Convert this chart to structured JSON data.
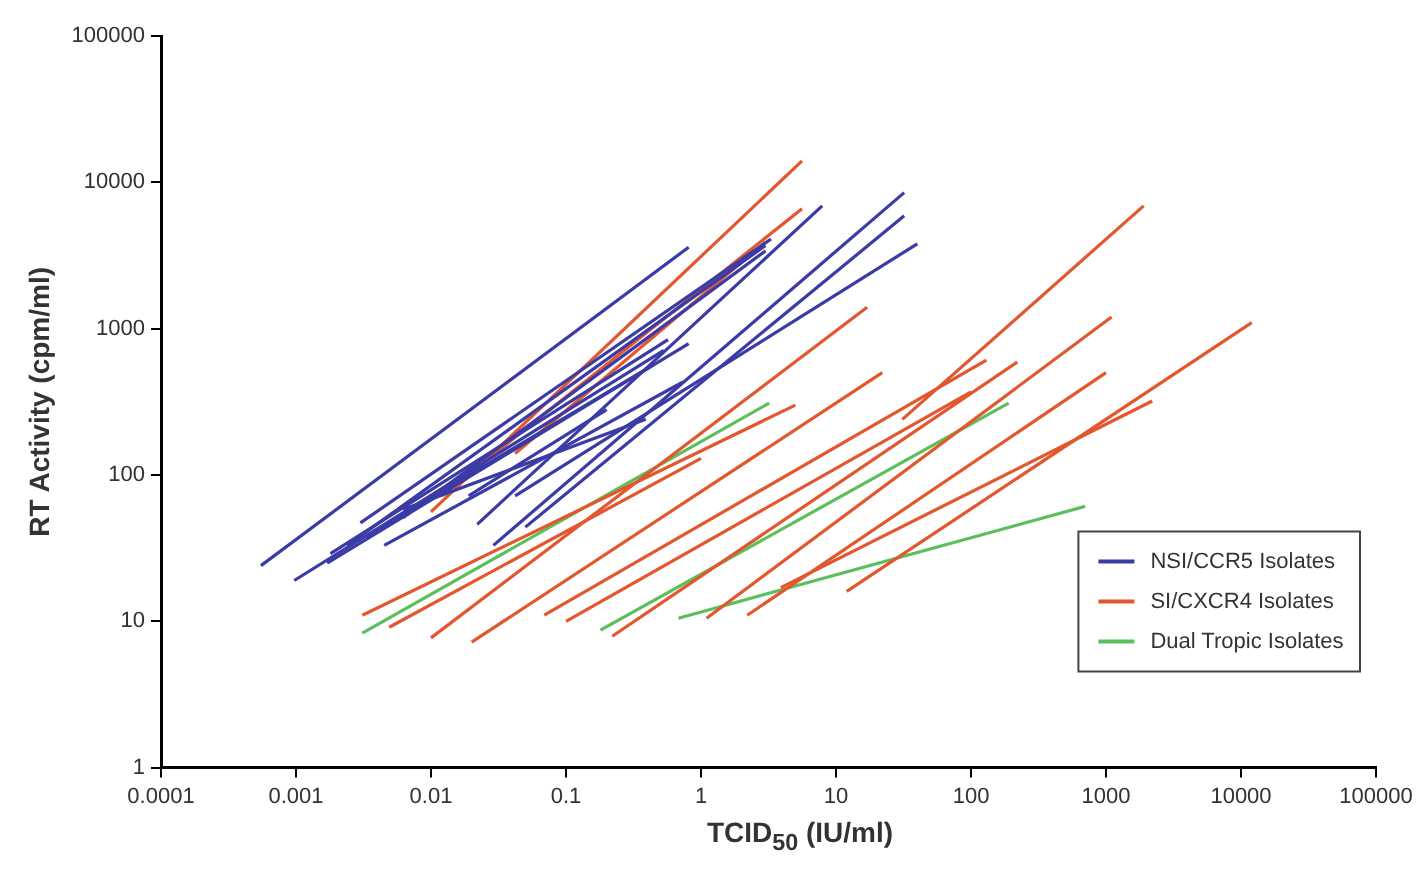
{
  "chart_data": {
    "type": "line",
    "xlabel": "TCID$_{50}$ (IU/ml)",
    "ylabel": "RT Activity (cpm/ml)",
    "log": "xy",
    "xlim": [
      0.0001,
      100000
    ],
    "ylim": [
      1,
      100000
    ],
    "xticks": [
      0.0001,
      0.001,
      0.01,
      0.1,
      1,
      10,
      100,
      1000,
      10000,
      100000
    ],
    "yticks": [
      1,
      10,
      100,
      1000,
      10000,
      100000
    ],
    "grid": false,
    "legend": "bottom right",
    "marker": "none",
    "line_style": "solid",
    "series": [
      {
        "name": "NSI/CCR5 Isolates",
        "color": "#3b3ba6",
        "x": [
          0.00055,
          0.81
        ],
        "values": [
          24,
          3600
        ]
      },
      {
        "color": "#3b3ba6",
        "x": [
          0.00097,
          0.53
        ],
        "values": [
          19,
          710
        ]
      },
      {
        "color": "#3b3ba6",
        "x": [
          0.0017,
          0.81
        ],
        "values": [
          25,
          790
        ]
      },
      {
        "color": "#3b3ba6",
        "x": [
          0.0018,
          0.57
        ],
        "values": [
          29,
          840
        ]
      },
      {
        "color": "#3b3ba6",
        "x": [
          0.0024,
          3
        ],
        "values": [
          33,
          3700
        ]
      },
      {
        "color": "#3b3ba6",
        "x": [
          0.003,
          3.3
        ],
        "values": [
          47,
          4100
        ]
      },
      {
        "color": "#3b3ba6",
        "x": [
          0.0033,
          0.45
        ],
        "values": [
          38,
          570
        ]
      },
      {
        "color": "#3b3ba6",
        "x": [
          0.0062,
          0.39
        ],
        "values": [
          58,
          240
        ]
      },
      {
        "color": "#3b3ba6",
        "x": [
          0.022,
          7.9
        ],
        "values": [
          46,
          6900
        ]
      },
      {
        "color": "#3b3ba6",
        "x": [
          0.029,
          32
        ],
        "values": [
          33,
          8500
        ]
      },
      {
        "color": "#3b3ba6",
        "x": [
          0.05,
          32
        ],
        "values": [
          44,
          5900
        ]
      },
      {
        "color": "#3b3ba6",
        "x": [
          0.042,
          40
        ],
        "values": [
          72,
          3800
        ]
      },
      {
        "color": "#3b3ba6",
        "x": [
          0.0062,
          3
        ],
        "values": [
          51,
          3400
        ]
      },
      {
        "color": "#3b3ba6",
        "x": [
          0.019,
          0.2
        ],
        "values": [
          72,
          280
        ]
      },
      {
        "color": "#3b3ba6",
        "x": [
          0.0045,
          0.73
        ],
        "values": [
          33,
          430
        ]
      },
      {
        "name": "SI/CXCR4 Isolates",
        "color": "#e2572e",
        "x": [
          0.01,
          5.6
        ],
        "values": [
          56,
          14000
        ]
      },
      {
        "color": "#e2572e",
        "x": [
          0.012,
          5.6
        ],
        "values": [
          72,
          6600
        ]
      },
      {
        "color": "#e2572e",
        "x": [
          0.042,
          3
        ],
        "values": [
          140,
          3900
        ]
      },
      {
        "color": "#e2572e",
        "x": [
          0.0031,
          5
        ],
        "values": [
          11,
          300
        ]
      },
      {
        "color": "#e2572e",
        "x": [
          0.0049,
          1
        ],
        "values": [
          9.1,
          130
        ]
      },
      {
        "color": "#e2572e",
        "x": [
          0.01,
          17
        ],
        "values": [
          7.7,
          1400
        ]
      },
      {
        "color": "#e2572e",
        "x": [
          0.02,
          22
        ],
        "values": [
          7.2,
          500
        ]
      },
      {
        "color": "#e2572e",
        "x": [
          0.069,
          130
        ],
        "values": [
          11,
          610
        ]
      },
      {
        "color": "#e2572e",
        "x": [
          0.1,
          100
        ],
        "values": [
          10,
          370
        ]
      },
      {
        "color": "#e2572e",
        "x": [
          0.22,
          220
        ],
        "values": [
          7.9,
          590
        ]
      },
      {
        "color": "#e2572e",
        "x": [
          1.1,
          1100
        ],
        "values": [
          10.5,
          1200
        ]
      },
      {
        "color": "#e2572e",
        "x": [
          2.2,
          1000
        ],
        "values": [
          11,
          500
        ]
      },
      {
        "color": "#e2572e",
        "x": [
          12,
          12000
        ],
        "values": [
          16,
          1100
        ]
      },
      {
        "color": "#e2572e",
        "x": [
          3.9,
          2200
        ],
        "values": [
          17,
          320
        ]
      },
      {
        "color": "#e2572e",
        "x": [
          31,
          1900
        ],
        "values": [
          240,
          6900
        ]
      },
      {
        "name": "Dual Tropic Isolates",
        "color": "#5cbf5c",
        "x": [
          0.0031,
          3.2
        ],
        "values": [
          8.3,
          310
        ]
      },
      {
        "color": "#5cbf5c",
        "x": [
          0.18,
          190
        ],
        "values": [
          8.7,
          310
        ]
      },
      {
        "color": "#5cbf5c",
        "x": [
          0.68,
          700
        ],
        "values": [
          10.5,
          61
        ]
      }
    ]
  }
}
